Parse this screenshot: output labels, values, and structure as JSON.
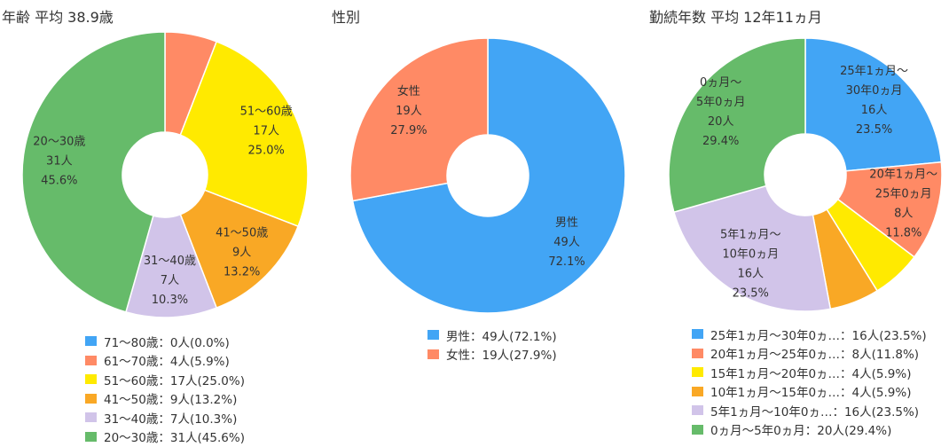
{
  "charts": [
    {
      "title": "年齢 平均 38.9歳",
      "chart_data": {
        "type": "pie",
        "categories": [
          "71～80歳",
          "61～70歳",
          "51～60歳",
          "41～50歳",
          "31～40歳",
          "20～30歳"
        ],
        "values": [
          0,
          4,
          17,
          9,
          7,
          31
        ],
        "percent": [
          0.0,
          5.9,
          25.0,
          13.2,
          10.3,
          45.6
        ]
      },
      "colors": [
        "#42A5F5",
        "#FF8A65",
        "#FFEA00",
        "#F9A825",
        "#D1C4E9",
        "#66BB6A"
      ],
      "slice_labels": [
        [],
        [],
        [
          "51～60歳",
          "17人",
          "25.0%"
        ],
        [
          "41～50歳",
          "9人",
          "13.2%"
        ],
        [
          "31～40歳",
          "7人",
          "10.3%"
        ],
        [
          "20～30歳",
          "31人",
          "45.6%"
        ]
      ],
      "legend": [
        "71～80歳：0人(0.0%)",
        "61～70歳：4人(5.9%)",
        "51～60歳：17人(25.0%)",
        "41～50歳：9人(13.2%)",
        "31～40歳：7人(10.3%)",
        "20～30歳：31人(45.6%)"
      ]
    },
    {
      "title": "性別",
      "chart_data": {
        "type": "pie",
        "categories": [
          "男性",
          "女性"
        ],
        "values": [
          49,
          19
        ],
        "percent": [
          72.1,
          27.9
        ]
      },
      "colors": [
        "#42A5F5",
        "#FF8A65"
      ],
      "slice_labels": [
        [
          "男性",
          "49人",
          "72.1%"
        ],
        [
          "女性",
          "19人",
          "27.9%"
        ]
      ],
      "legend": [
        "男性：49人(72.1%)",
        "女性：19人(27.9%)"
      ]
    },
    {
      "title": "勤続年数 平均 12年11ヵ月",
      "chart_data": {
        "type": "pie",
        "categories": [
          "25年1ヵ月～30年0ヵ月",
          "20年1ヵ月～25年0ヵ月",
          "15年1ヵ月～20年0ヵ月",
          "10年1ヵ月～15年0ヵ月",
          "5年1ヵ月～10年0ヵ月",
          "0ヵ月～5年0ヵ月"
        ],
        "values": [
          16,
          8,
          4,
          4,
          16,
          20
        ],
        "percent": [
          23.5,
          11.8,
          5.9,
          5.9,
          23.5,
          29.4
        ]
      },
      "colors": [
        "#42A5F5",
        "#FF8A65",
        "#FFEA00",
        "#F9A825",
        "#D1C4E9",
        "#66BB6A"
      ],
      "slice_labels": [
        [
          "25年1ヵ月～",
          "30年0ヵ月",
          "16人",
          "23.5%"
        ],
        [
          "20年1ヵ月～",
          "25年0ヵ月",
          "8人",
          "11.8%"
        ],
        [],
        [],
        [
          "5年1ヵ月～",
          "10年0ヵ月",
          "16人",
          "23.5%"
        ],
        [
          "0ヵ月～",
          "5年0ヵ月",
          "20人",
          "29.4%"
        ]
      ],
      "legend": [
        "25年1ヵ月～30年0ヵ…：16人(23.5%)",
        "20年1ヵ月～25年0ヵ…：8人(11.8%)",
        "15年1ヵ月～20年0ヵ…：4人(5.9%)",
        "10年1ヵ月～15年0ヵ…：4人(5.9%)",
        "5年1ヵ月～10年0ヵ…：16人(23.5%)",
        "0ヵ月～5年0ヵ月：20人(29.4%)"
      ]
    }
  ]
}
